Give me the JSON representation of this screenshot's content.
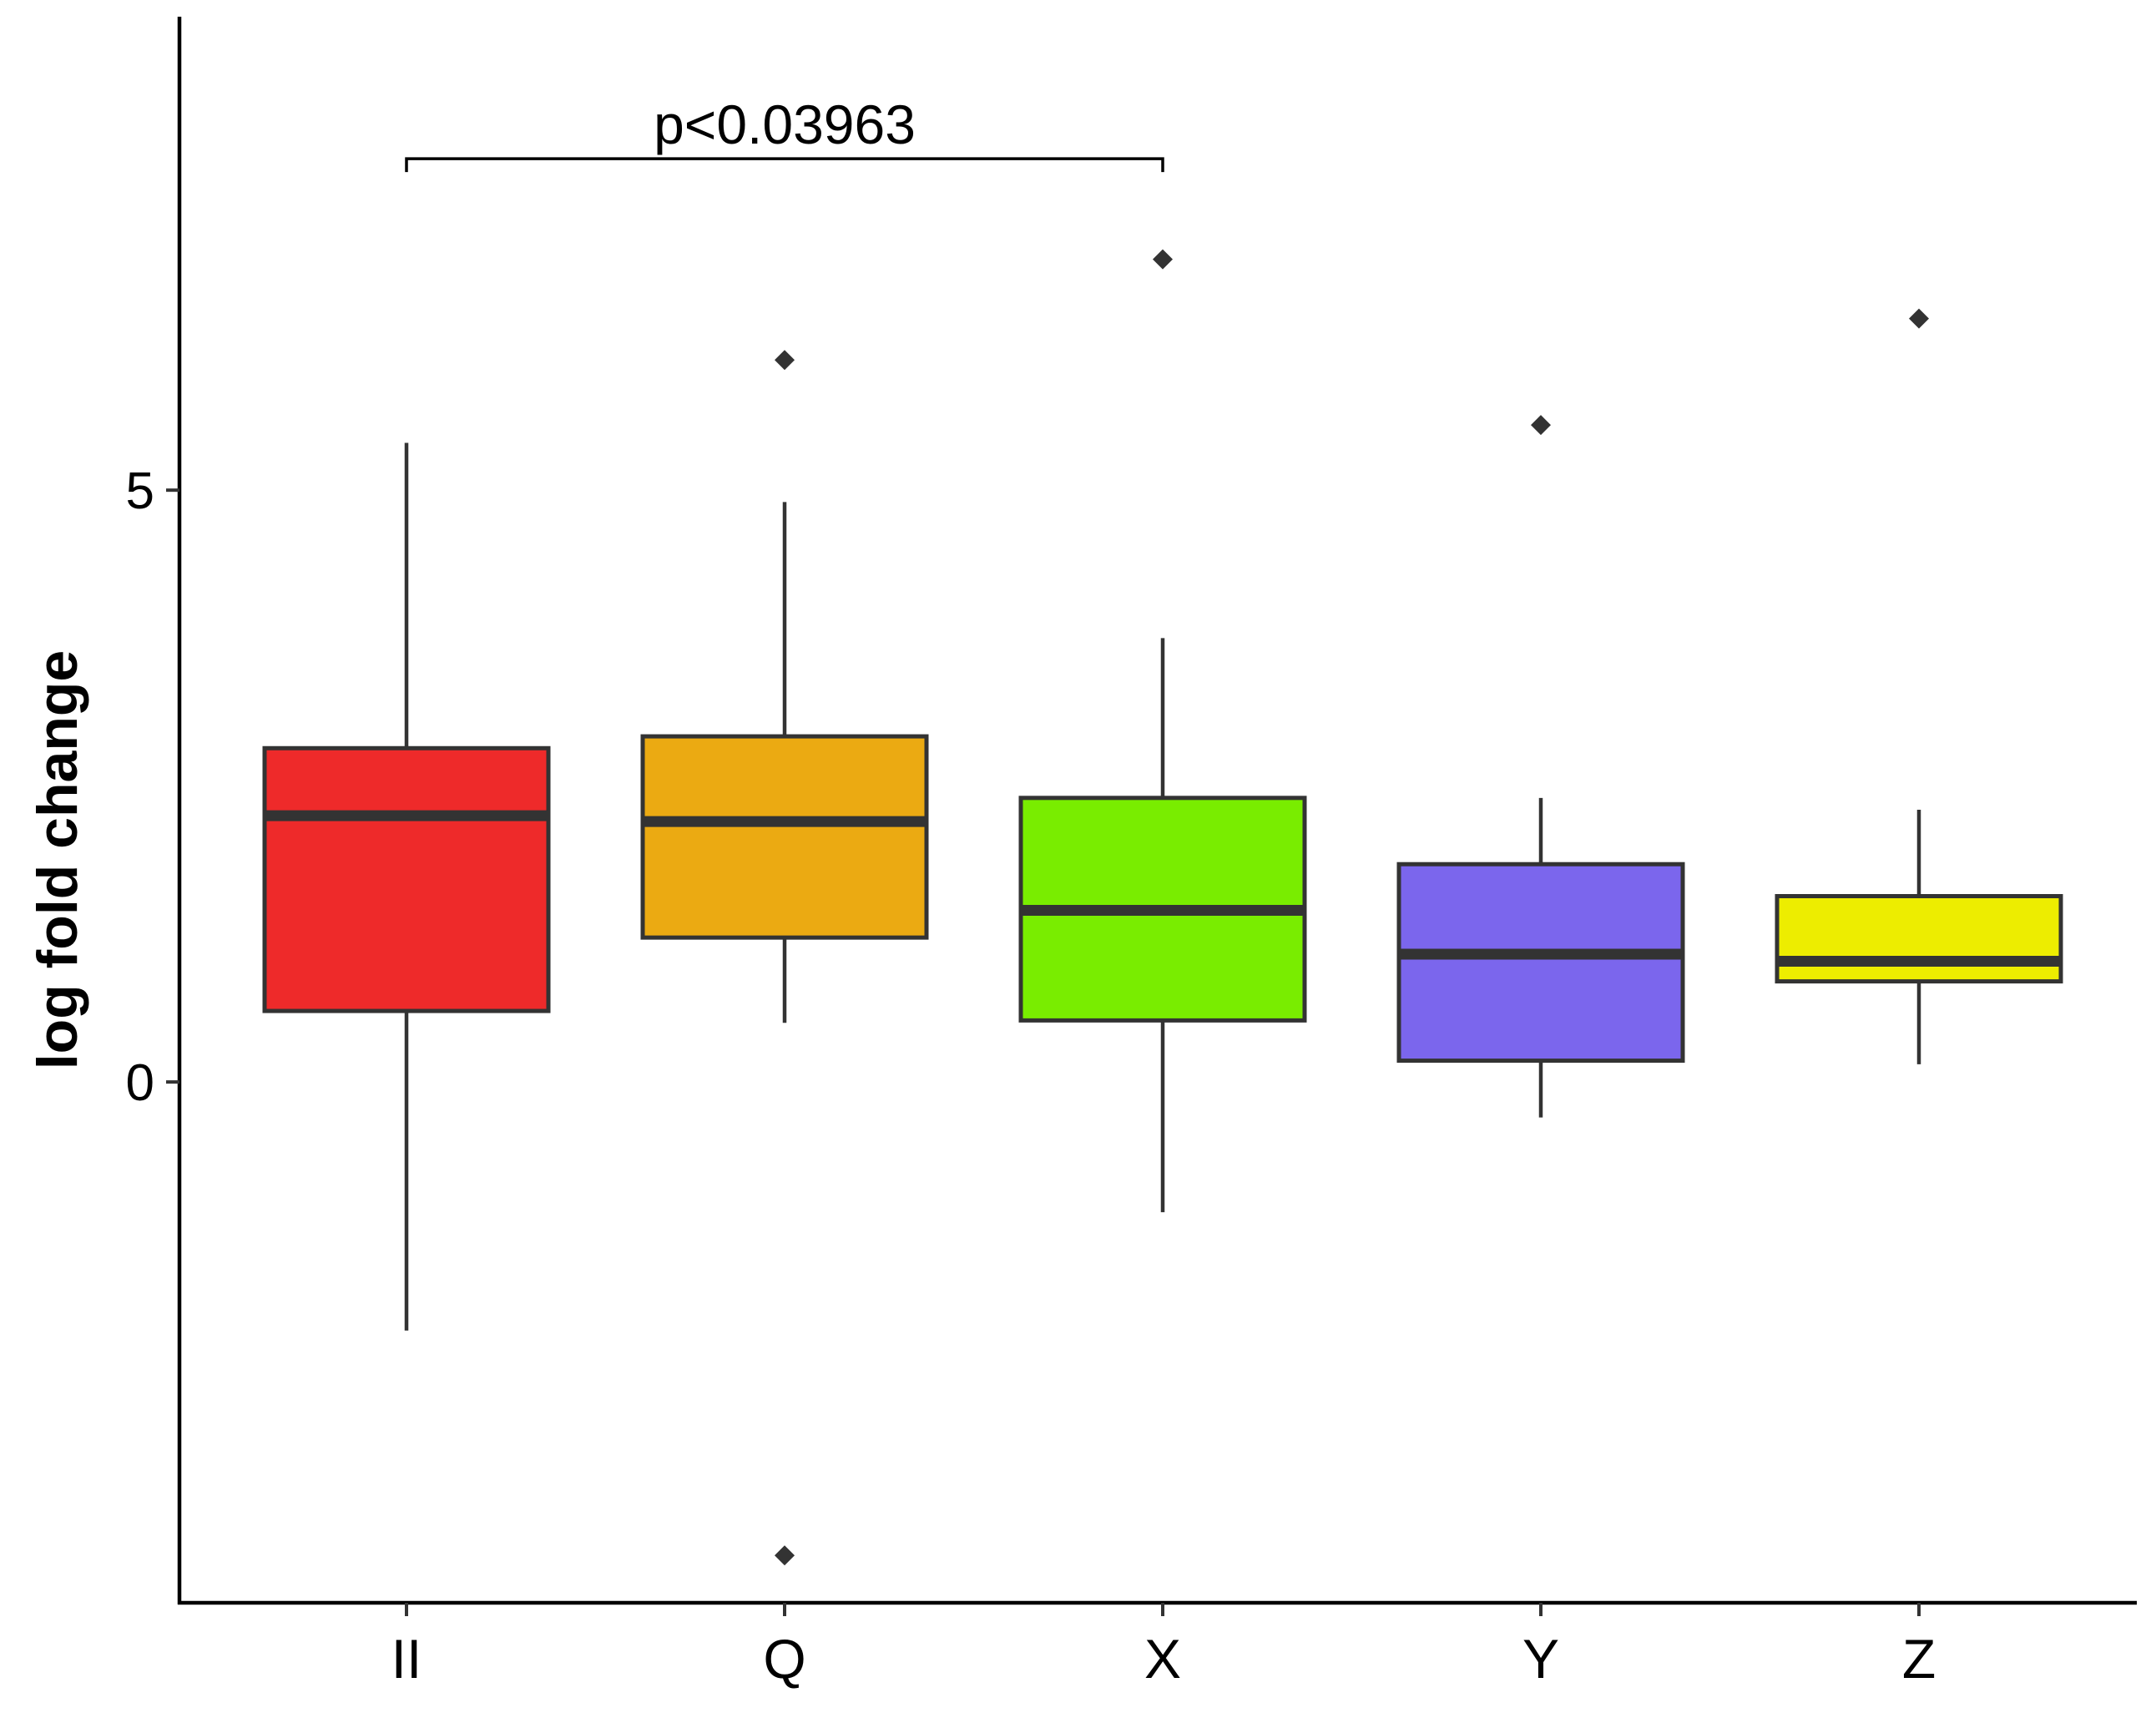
{
  "chart_data": {
    "type": "boxplot",
    "title": "",
    "xlabel": "",
    "ylabel": "log fold change",
    "ylim": [
      -4.4,
      9.0
    ],
    "yticks": [
      0,
      5
    ],
    "grid": false,
    "legend": "none",
    "categories": [
      "II",
      "Q",
      "X",
      "Y",
      "Z"
    ],
    "boxes": [
      {
        "category": "II",
        "whisker_low": -2.1,
        "q1": 0.6,
        "median": 2.25,
        "q3": 2.82,
        "whisker_high": 5.4,
        "outliers": [],
        "color": "#EE2A2A"
      },
      {
        "category": "Q",
        "whisker_low": 0.5,
        "q1": 1.22,
        "median": 2.2,
        "q3": 2.92,
        "whisker_high": 4.9,
        "outliers": [
          6.1,
          -4.0
        ],
        "color": "#EBAA12"
      },
      {
        "category": "X",
        "whisker_low": -1.1,
        "q1": 0.52,
        "median": 1.45,
        "q3": 2.4,
        "whisker_high": 3.75,
        "outliers": [
          6.95
        ],
        "color": "#79ED00"
      },
      {
        "category": "Y",
        "whisker_low": -0.3,
        "q1": 0.18,
        "median": 1.08,
        "q3": 1.84,
        "whisker_high": 2.4,
        "outliers": [
          5.55
        ],
        "color": "#7B66ED"
      },
      {
        "category": "Z",
        "whisker_low": 0.15,
        "q1": 0.85,
        "median": 1.02,
        "q3": 1.57,
        "whisker_high": 2.3,
        "outliers": [
          6.45
        ],
        "color": "#EDED00"
      }
    ],
    "annotations": [
      {
        "text": "p<0.03963",
        "from": "II",
        "to": "X",
        "y": 7.8
      }
    ],
    "colors": {
      "axis": "#000000",
      "box_outline": "#333333",
      "median": "#333333"
    }
  }
}
